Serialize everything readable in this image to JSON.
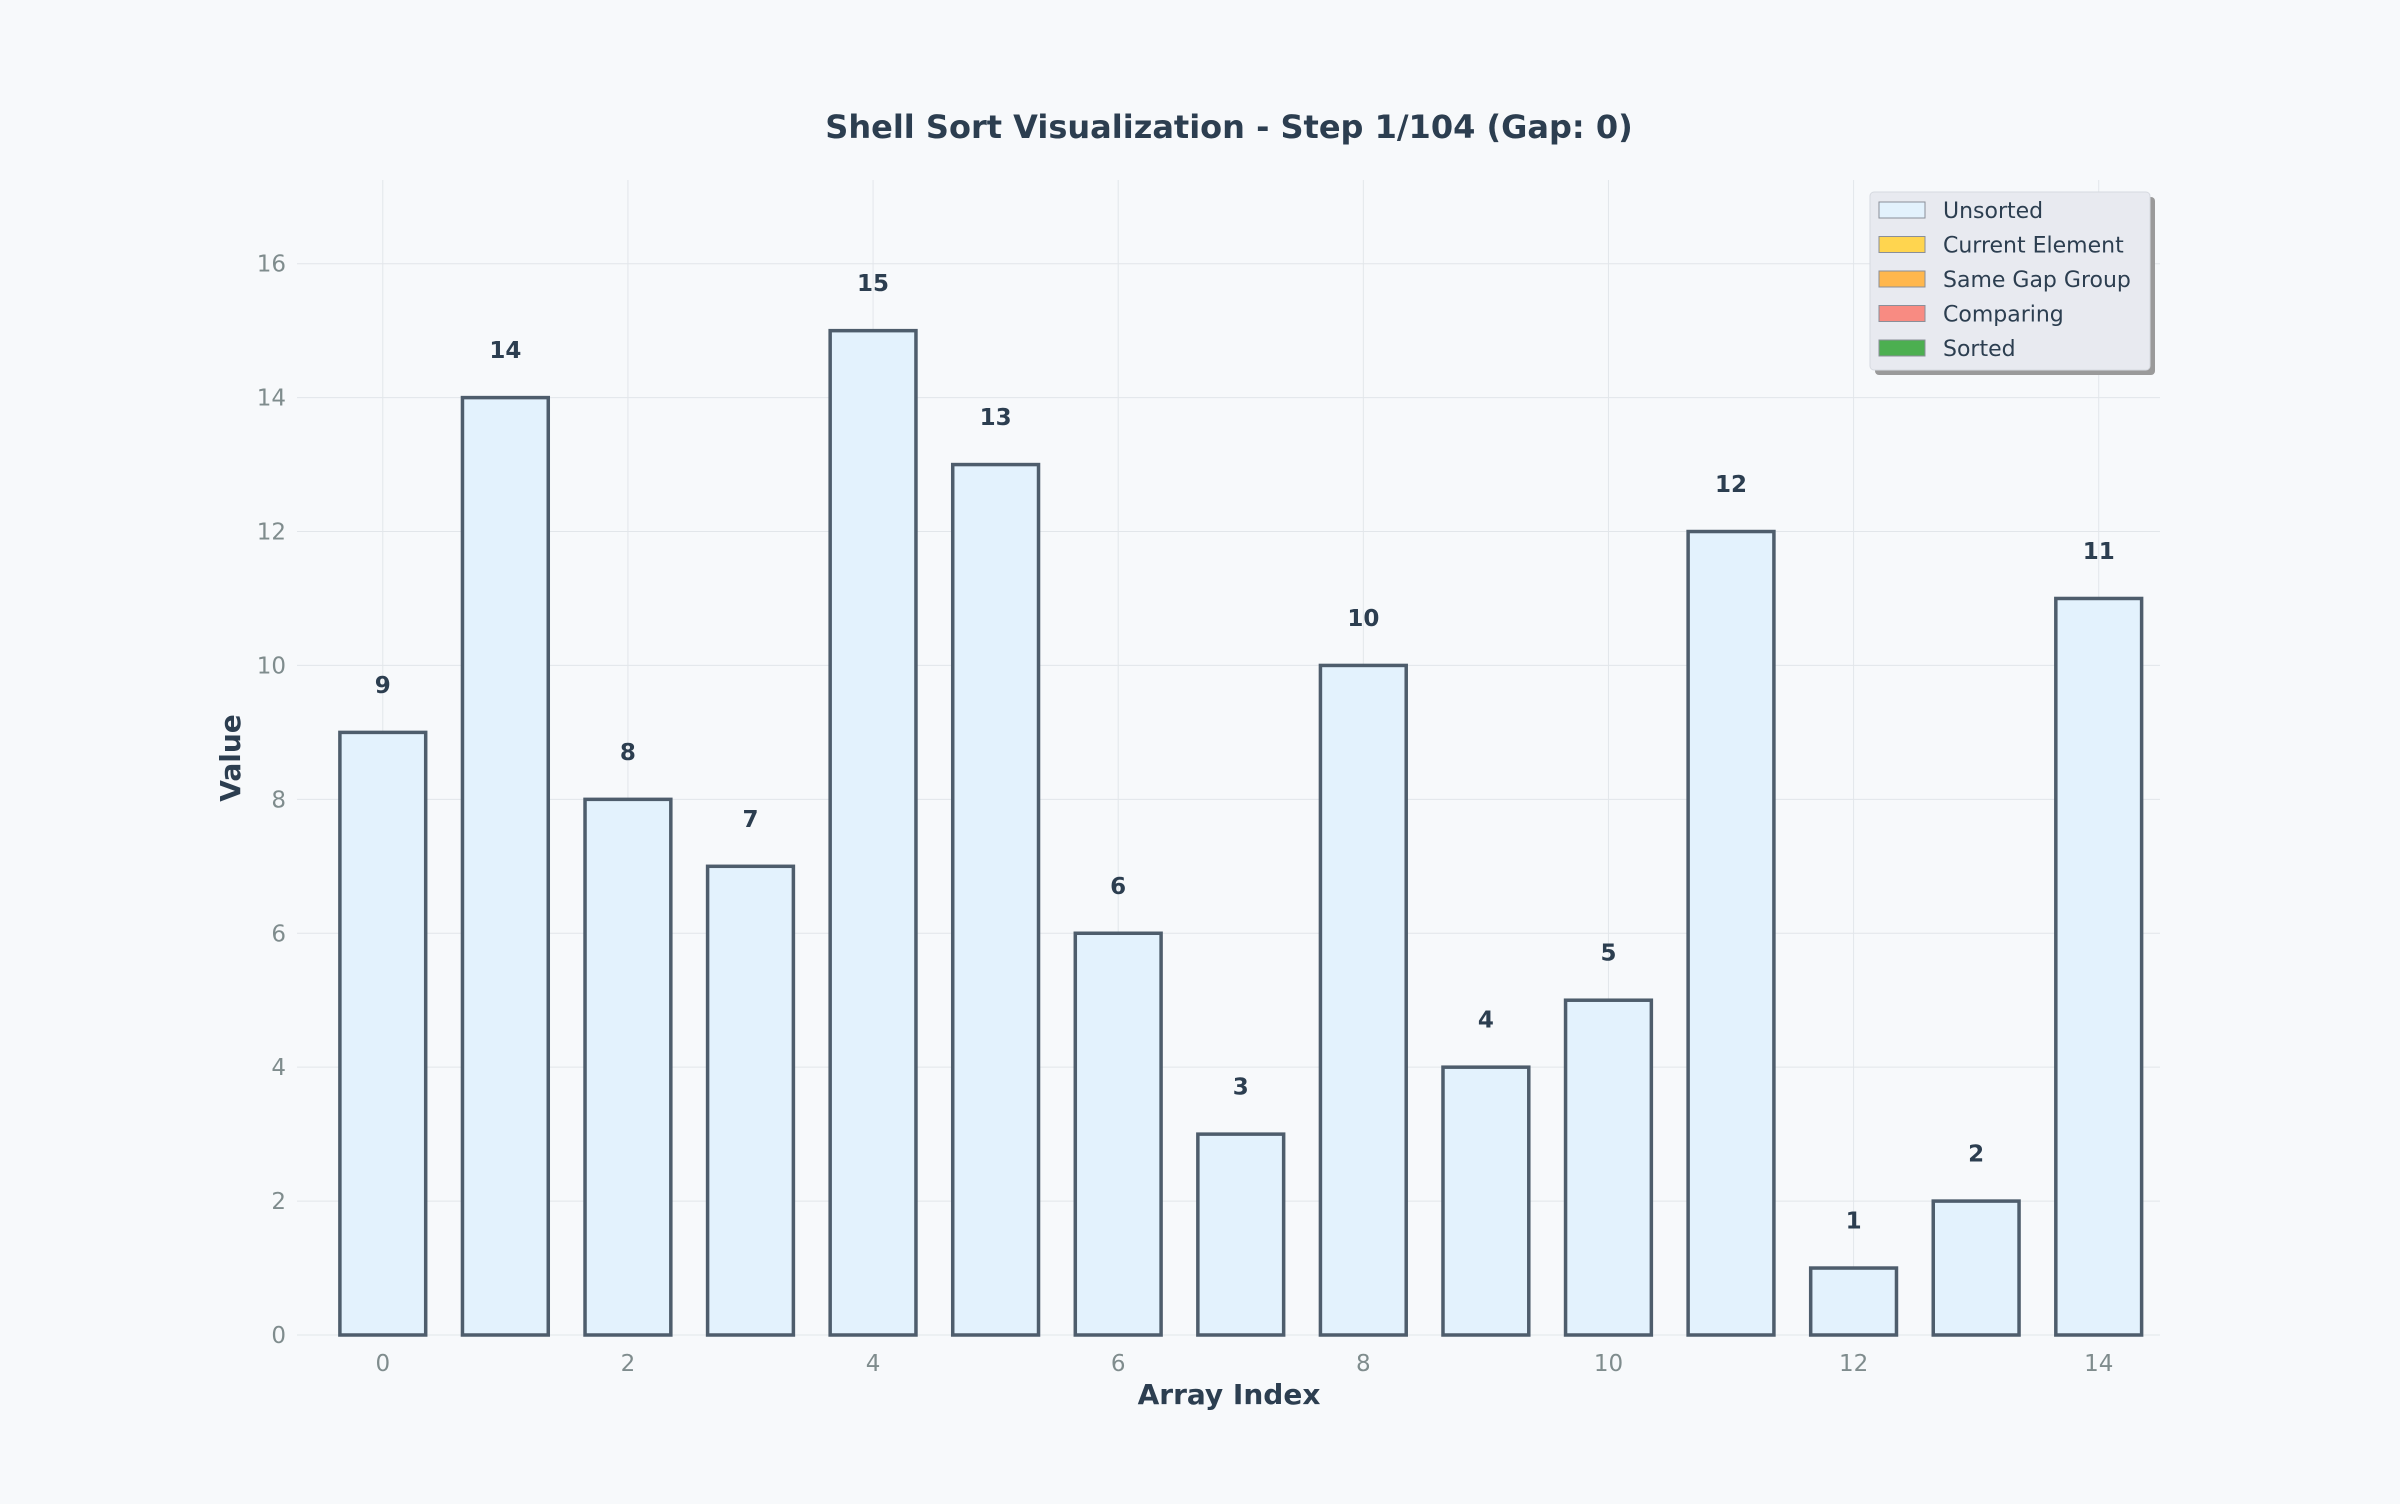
{
  "chart_data": {
    "type": "bar",
    "title": "Shell Sort Visualization - Step 1/104 (Gap: 0)",
    "xlabel": "Array Index",
    "ylabel": "Value",
    "x": [
      0,
      1,
      2,
      3,
      4,
      5,
      6,
      7,
      8,
      9,
      10,
      11,
      12,
      13,
      14
    ],
    "values": [
      9,
      14,
      8,
      7,
      15,
      13,
      6,
      3,
      10,
      4,
      5,
      12,
      1,
      2,
      11
    ],
    "bar_state": [
      "unsorted",
      "unsorted",
      "unsorted",
      "unsorted",
      "unsorted",
      "unsorted",
      "unsorted",
      "unsorted",
      "unsorted",
      "unsorted",
      "unsorted",
      "unsorted",
      "unsorted",
      "unsorted",
      "unsorted"
    ],
    "xticks": [
      0,
      2,
      4,
      6,
      8,
      10,
      12,
      14
    ],
    "yticks": [
      0,
      2,
      4,
      6,
      8,
      10,
      12,
      14,
      16
    ],
    "xlim": [
      -0.7,
      14.5
    ],
    "ylim": [
      0,
      17.25
    ],
    "grid": true,
    "legend_position": "top-right",
    "legend": [
      {
        "key": "unsorted",
        "label": "Unsorted",
        "color": "#e3f2fd"
      },
      {
        "key": "current",
        "label": "Current Element",
        "color": "#ffd54f"
      },
      {
        "key": "same_gap",
        "label": "Same Gap Group",
        "color": "#ffb74d"
      },
      {
        "key": "comparing",
        "label": "Comparing",
        "color": "#f88b82"
      },
      {
        "key": "sorted",
        "label": "Sorted",
        "color": "#4caf50"
      }
    ]
  },
  "colors": {
    "background": "#f7f9fb",
    "title_text": "#2c3e50",
    "tick_text": "#7f8c8d",
    "grid": "#e2e6ea",
    "bar_edge": "#4e5d6c",
    "value_text": "#2c3e50",
    "legend_bg": "#e8eaf0",
    "legend_shadow": "#9a9a9a",
    "legend_text": "#2c3e50",
    "unsorted_fill": "#e3f2fd"
  }
}
